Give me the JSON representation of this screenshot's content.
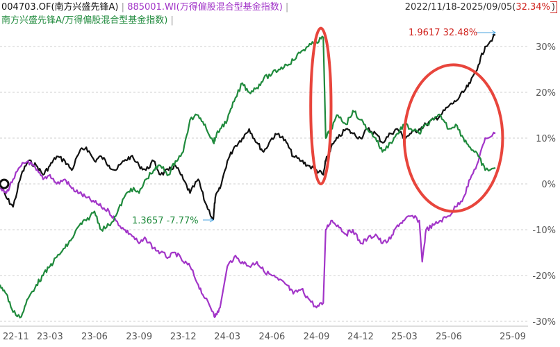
{
  "legend": {
    "fund": "004703.OF(南方兴盛先锋A)",
    "sep1": "|",
    "index": "885001.WI(万得偏股混合型基金指数)",
    "sep2": "|",
    "ratio": "南方兴盛先锋A/万得偏股混合型基金指数)",
    "sep3": "|"
  },
  "range": {
    "dates": "2022/11/18-2025/09/05(",
    "pct": "32.34%",
    "close": ")"
  },
  "colors": {
    "fund": "#111111",
    "index": "#a235c8",
    "ratio": "#1f8a3c",
    "highlight": "#e8453c",
    "annotation_red": "#d0221d",
    "annotation_green": "#1f8a3c",
    "arrow": "#4aa3df"
  },
  "chart_data": {
    "type": "line",
    "title": "",
    "xlabel": "",
    "ylabel": "",
    "x_ticks": [
      "22-11",
      "23-03",
      "23-06",
      "23-09",
      "23-12",
      "24-03",
      "24-06",
      "24-09",
      "24-12",
      "25-03",
      "25-06",
      "25-09"
    ],
    "y_ticks": [
      "30%",
      "20%",
      "10%",
      "0%",
      "-10%",
      "-20%",
      "-30%"
    ],
    "ylim": [
      -30,
      35
    ],
    "grid": true,
    "y_axis_side": "right",
    "series": [
      {
        "name": "004703.OF(南方兴盛先锋A)",
        "color": "#111111",
        "x": [
          "2022-11-18",
          "2022-12-01",
          "2022-12-15",
          "2023-01-01",
          "2023-01-15",
          "2023-02-01",
          "2023-02-15",
          "2023-03-01",
          "2023-03-15",
          "2023-04-01",
          "2023-04-15",
          "2023-05-01",
          "2023-05-15",
          "2023-06-01",
          "2023-06-15",
          "2023-07-01",
          "2023-07-15",
          "2023-08-01",
          "2023-08-15",
          "2023-09-01",
          "2023-09-15",
          "2023-10-01",
          "2023-10-15",
          "2023-11-01",
          "2023-11-15",
          "2023-12-01",
          "2023-12-15",
          "2024-01-01",
          "2024-01-15",
          "2024-02-01",
          "2024-02-05",
          "2024-02-15",
          "2024-03-01",
          "2024-03-15",
          "2024-04-01",
          "2024-04-15",
          "2024-05-01",
          "2024-05-15",
          "2024-06-01",
          "2024-06-15",
          "2024-07-01",
          "2024-07-15",
          "2024-08-01",
          "2024-08-15",
          "2024-09-01",
          "2024-09-15",
          "2024-09-20",
          "2024-10-01",
          "2024-10-15",
          "2024-11-01",
          "2024-11-15",
          "2024-12-01",
          "2024-12-15",
          "2025-01-01",
          "2025-01-15",
          "2025-02-01",
          "2025-02-15",
          "2025-03-01",
          "2025-03-15",
          "2025-04-01",
          "2025-04-15",
          "2025-05-01",
          "2025-05-15",
          "2025-06-01",
          "2025-06-15",
          "2025-07-01",
          "2025-07-15",
          "2025-08-01",
          "2025-08-15",
          "2025-09-05"
        ],
        "values": [
          0,
          -3,
          -5,
          2,
          5,
          4,
          2,
          4,
          6,
          5,
          3,
          7,
          8,
          5,
          6,
          4,
          3,
          5,
          6,
          4,
          3,
          5,
          2,
          3,
          4,
          1,
          -2,
          1,
          -4,
          -7.77,
          -3,
          -1,
          5,
          8,
          10,
          12,
          9,
          7,
          10,
          11,
          9,
          6,
          5,
          4,
          3,
          2,
          5,
          8,
          10,
          12,
          11,
          10,
          12,
          11,
          9,
          11,
          12,
          10,
          11,
          12,
          13,
          14,
          15,
          17,
          18,
          20,
          22,
          26,
          30,
          32.48
        ]
      },
      {
        "name": "885001.WI(万得偏股混合型基金指数)",
        "color": "#a235c8",
        "x": [
          "2022-11-18",
          "2022-12-01",
          "2022-12-15",
          "2023-01-01",
          "2023-01-15",
          "2023-02-01",
          "2023-02-15",
          "2023-03-01",
          "2023-03-15",
          "2023-04-01",
          "2023-04-15",
          "2023-05-01",
          "2023-05-15",
          "2023-06-01",
          "2023-06-15",
          "2023-07-01",
          "2023-07-15",
          "2023-08-01",
          "2023-08-15",
          "2023-09-01",
          "2023-09-15",
          "2023-10-01",
          "2023-10-15",
          "2023-11-01",
          "2023-11-15",
          "2023-12-01",
          "2023-12-15",
          "2024-01-01",
          "2024-01-15",
          "2024-02-01",
          "2024-02-05",
          "2024-02-15",
          "2024-03-01",
          "2024-03-15",
          "2024-04-01",
          "2024-04-15",
          "2024-05-01",
          "2024-05-15",
          "2024-06-01",
          "2024-06-15",
          "2024-07-01",
          "2024-07-15",
          "2024-08-01",
          "2024-08-15",
          "2024-09-01",
          "2024-09-15",
          "2024-09-20",
          "2024-10-01",
          "2024-10-15",
          "2024-11-01",
          "2024-11-15",
          "2024-12-01",
          "2024-12-15",
          "2025-01-01",
          "2025-01-15",
          "2025-02-01",
          "2025-02-15",
          "2025-03-01",
          "2025-03-15",
          "2025-04-01",
          "2025-04-07",
          "2025-04-15",
          "2025-05-01",
          "2025-05-15",
          "2025-06-01",
          "2025-06-15",
          "2025-07-01",
          "2025-07-15",
          "2025-08-01",
          "2025-08-15",
          "2025-09-05"
        ],
        "values": [
          -1,
          -2,
          1,
          4,
          5,
          3,
          1,
          2,
          0,
          1,
          -1,
          -2,
          -3,
          -4,
          -5,
          -6,
          -8,
          -10,
          -11,
          -13,
          -12,
          -14,
          -15,
          -16,
          -15,
          -17,
          -18,
          -22,
          -25,
          -28,
          -29,
          -27,
          -18,
          -16,
          -17,
          -18,
          -17,
          -19,
          -20,
          -21,
          -22,
          -24,
          -23,
          -25,
          -27,
          -26,
          -10,
          -8,
          -9,
          -11,
          -10,
          -13,
          -12,
          -11,
          -13,
          -12,
          -9,
          -8,
          -7,
          -8,
          -17,
          -10,
          -9,
          -8,
          -7,
          -5,
          -3,
          1,
          5,
          10,
          11
        ]
      },
      {
        "name": "南方兴盛先锋A/万得偏股混合型基金指数)",
        "color": "#1f8a3c",
        "x": [
          "2022-11-18",
          "2022-12-01",
          "2022-12-15",
          "2023-01-01",
          "2023-01-15",
          "2023-02-01",
          "2023-02-15",
          "2023-03-01",
          "2023-03-15",
          "2023-04-01",
          "2023-04-15",
          "2023-05-01",
          "2023-05-15",
          "2023-06-01",
          "2023-06-15",
          "2023-07-01",
          "2023-07-15",
          "2023-08-01",
          "2023-08-15",
          "2023-09-01",
          "2023-09-15",
          "2023-10-01",
          "2023-10-15",
          "2023-11-01",
          "2023-11-15",
          "2023-12-01",
          "2023-12-15",
          "2024-01-01",
          "2024-01-15",
          "2024-02-01",
          "2024-02-05",
          "2024-02-15",
          "2024-03-01",
          "2024-03-15",
          "2024-04-01",
          "2024-04-15",
          "2024-05-01",
          "2024-05-15",
          "2024-06-01",
          "2024-06-15",
          "2024-07-01",
          "2024-07-15",
          "2024-08-01",
          "2024-08-15",
          "2024-09-01",
          "2024-09-15",
          "2024-09-20",
          "2024-10-01",
          "2024-10-15",
          "2024-11-01",
          "2024-11-15",
          "2024-12-01",
          "2024-12-15",
          "2025-01-01",
          "2025-01-15",
          "2025-02-01",
          "2025-02-15",
          "2025-03-01",
          "2025-03-15",
          "2025-04-01",
          "2025-04-15",
          "2025-05-01",
          "2025-05-15",
          "2025-06-01",
          "2025-06-15",
          "2025-07-01",
          "2025-07-15",
          "2025-08-01",
          "2025-08-15",
          "2025-09-05"
        ],
        "values": [
          -22,
          -24,
          -28,
          -29,
          -25,
          -22,
          -20,
          -18,
          -16,
          -14,
          -12,
          -9,
          -8,
          -6,
          -10,
          -9,
          -7,
          -3,
          -1,
          -2,
          1,
          3,
          4,
          2,
          5,
          7,
          14,
          15,
          13,
          9,
          10,
          12,
          14,
          18,
          22,
          20,
          21,
          23,
          24,
          25,
          26,
          27,
          29,
          30,
          31,
          32,
          10,
          12,
          15,
          13,
          16,
          14,
          12,
          10,
          7,
          9,
          11,
          13,
          12,
          11,
          13,
          14,
          15,
          12,
          13,
          10,
          8,
          6,
          3,
          3.5
        ]
      }
    ],
    "annotations": [
      {
        "text": "1.9617 32.48%",
        "series": 0,
        "x": "2025-09-05",
        "y": 32.48,
        "color": "#d0221d"
      },
      {
        "text": "1.3657 -7.77%",
        "series": 0,
        "x": "2024-02-01",
        "y": -7.77,
        "color": "#1f8a3c"
      }
    ],
    "highlights": [
      {
        "shape": "ellipse",
        "from": "2024-08-20",
        "to": "2024-10-01",
        "ymin": 0,
        "ymax": 34
      },
      {
        "shape": "ellipse",
        "from": "2025-03-01",
        "to": "2025-09-20",
        "ymin": -6,
        "ymax": 26
      }
    ]
  }
}
